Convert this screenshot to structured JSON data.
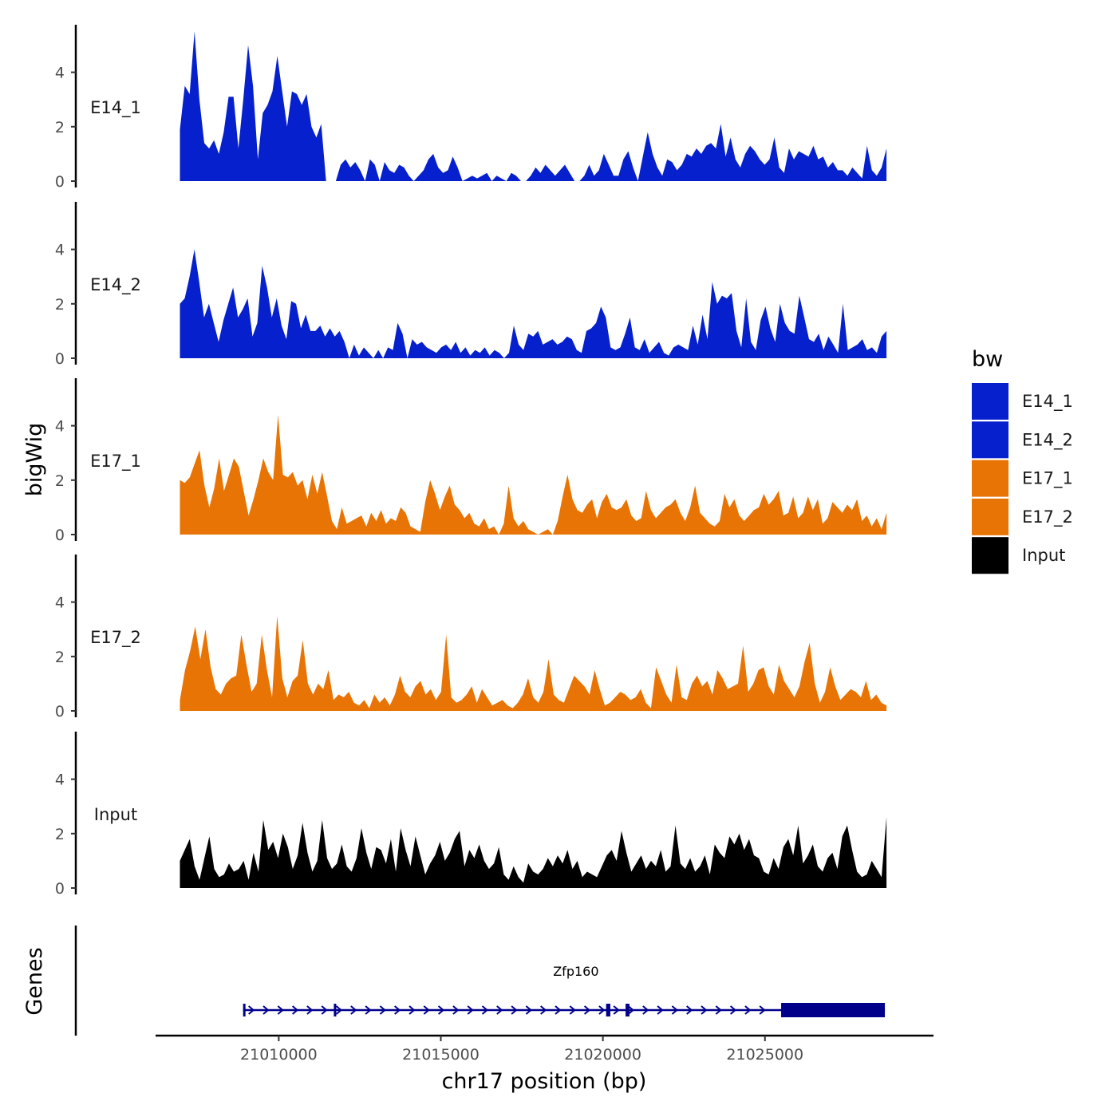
{
  "chart_data": {
    "type": "area",
    "title": "",
    "xlabel": "chr17 position (bp)",
    "ylabel": "bigWig",
    "genes_panel_label": "Genes",
    "xlim": [
      21006200,
      21030200
    ],
    "x_range_data": [
      21006950,
      21028750
    ],
    "x_ticks": [
      21010000,
      21015000,
      21020000,
      21025000
    ],
    "x_tick_labels": [
      "21010000",
      "21015000",
      "21020000",
      "21025000"
    ],
    "ylim": [
      0,
      5.75
    ],
    "y_ticks": [
      0,
      2,
      4
    ],
    "y_tick_labels": [
      "0",
      "2",
      "4"
    ],
    "legend": {
      "title": "bw",
      "position": "right",
      "entries": [
        {
          "label": "E14_1",
          "color": "#0520CC"
        },
        {
          "label": "E14_2",
          "color": "#0520CC"
        },
        {
          "label": "E17_1",
          "color": "#E87405"
        },
        {
          "label": "E17_2",
          "color": "#E87405"
        },
        {
          "label": "Input",
          "color": "#000000"
        }
      ]
    },
    "series": [
      {
        "name": "E14_1",
        "color": "#0520CC",
        "x_step_bp": 100,
        "values": [
          1.9,
          3.5,
          3.2,
          5.5,
          3.0,
          1.4,
          1.2,
          1.5,
          1.0,
          1.8,
          3.1,
          3.1,
          1.2,
          3.0,
          5.0,
          3.5,
          0.8,
          2.5,
          2.8,
          3.3,
          4.6,
          3.3,
          2.0,
          3.3,
          3.2,
          2.8,
          3.2,
          2.0,
          1.6,
          2.1,
          0,
          0,
          0,
          0.6,
          0.8,
          0.5,
          0.7,
          0.4,
          0,
          0.8,
          0.6,
          0,
          0.7,
          0.4,
          0.3,
          0.6,
          0.5,
          0.2,
          0,
          0.2,
          0.4,
          0.8,
          1.0,
          0.5,
          0.3,
          0.4,
          0.9,
          0.5,
          0,
          0.1,
          0.2,
          0.1,
          0.2,
          0.3,
          0,
          0.2,
          0.1,
          0,
          0.3,
          0.2,
          0,
          0,
          0.2,
          0.5,
          0.3,
          0.6,
          0.4,
          0.2,
          0.4,
          0.6,
          0.3,
          0,
          0,
          0.2,
          0.6,
          0.2,
          0.4,
          1.0,
          0.6,
          0.2,
          0.2,
          0.8,
          1.1,
          0.5,
          0,
          0.9,
          1.8,
          1.0,
          0.5,
          0.2,
          0.8,
          0.7,
          0.4,
          0.6,
          1.0,
          0.9,
          1.2,
          1.0,
          1.3,
          1.4,
          1.2,
          2.1,
          0.9,
          1.6,
          0.8,
          0.5,
          1.0,
          1.3,
          1.1,
          0.8,
          0.6,
          0.8,
          1.6,
          0.5,
          0.3,
          1.2,
          0.8,
          1.1,
          1.0,
          0.9,
          1.3,
          0.8,
          0.9,
          0.5,
          0.7,
          0.4,
          0.4,
          0.2,
          0.5,
          0.3,
          0.1,
          1.3,
          0.4,
          0.2,
          0.5,
          1.2
        ]
      },
      {
        "name": "E14_2",
        "color": "#0520CC",
        "x_step_bp": 100,
        "values": [
          2.0,
          2.2,
          3.0,
          4.0,
          2.8,
          1.5,
          2.0,
          1.3,
          0.6,
          1.4,
          2.0,
          2.6,
          1.5,
          1.8,
          2.2,
          0.8,
          1.3,
          3.4,
          2.6,
          1.5,
          2.2,
          1.2,
          0.7,
          2.1,
          2.0,
          1.1,
          1.6,
          1.0,
          1.0,
          1.2,
          0.8,
          1.1,
          0.8,
          1.0,
          0.6,
          0,
          0.5,
          0.1,
          0.4,
          0.2,
          0,
          0.3,
          0,
          0.4,
          0.3,
          1.3,
          0.9,
          0,
          0.7,
          0.5,
          0.6,
          0.4,
          0.3,
          0.2,
          0.4,
          0.5,
          0.3,
          0.6,
          0.2,
          0.4,
          0.1,
          0.3,
          0.2,
          0.4,
          0.1,
          0.3,
          0.2,
          0,
          0.2,
          1.2,
          0.5,
          0.3,
          0.9,
          0.8,
          1.0,
          0.5,
          0.6,
          0.7,
          0.5,
          0.6,
          0.8,
          0.7,
          0.3,
          0.2,
          1.0,
          1.1,
          1.3,
          1.9,
          1.5,
          0.4,
          0.3,
          0.4,
          0.9,
          1.5,
          0.4,
          0.3,
          0.7,
          0.2,
          0.4,
          0.6,
          0.2,
          0.1,
          0.4,
          0.5,
          0.4,
          0.3,
          1.2,
          0.5,
          1.6,
          0.7,
          2.8,
          2.0,
          2.3,
          2.2,
          2.4,
          1.0,
          0.4,
          2.2,
          0.6,
          0.3,
          1.4,
          1.9,
          1.1,
          0.6,
          2.0,
          1.3,
          1.0,
          0.9,
          2.3,
          1.5,
          0.7,
          0.6,
          0.9,
          0.3,
          0.8,
          0.5,
          0.2,
          2.0,
          0.3,
          0.4,
          0.5,
          0.7,
          0.3,
          0.4,
          0.2,
          0.8,
          1.0
        ]
      },
      {
        "name": "E17_1",
        "color": "#E87405",
        "x_step_bp": 100,
        "values": [
          2.0,
          1.9,
          2.1,
          2.6,
          3.1,
          1.8,
          1.0,
          1.7,
          2.8,
          1.6,
          2.2,
          2.8,
          2.5,
          1.6,
          0.7,
          1.3,
          2.0,
          2.8,
          2.3,
          2.0,
          4.4,
          2.2,
          2.1,
          2.3,
          1.8,
          2.0,
          1.3,
          2.2,
          1.5,
          2.3,
          1.4,
          0.5,
          0.2,
          1.0,
          0.4,
          0.5,
          0.6,
          0.7,
          0.3,
          0.8,
          0.5,
          0.9,
          0.4,
          0.6,
          0.5,
          1.0,
          0.8,
          0.3,
          0.2,
          0.1,
          1.2,
          2.0,
          1.5,
          0.9,
          1.4,
          1.8,
          1.1,
          0.9,
          0.6,
          0.8,
          0.4,
          0.3,
          0.6,
          0.2,
          0.3,
          0,
          0.4,
          1.8,
          0.6,
          0.3,
          0.5,
          0.2,
          0.1,
          0,
          0.1,
          0.2,
          0,
          0.5,
          1.4,
          2.2,
          1.3,
          0.9,
          0.8,
          1.1,
          1.3,
          0.6,
          1.2,
          1.5,
          1.0,
          0.9,
          1.0,
          1.3,
          0.7,
          0.5,
          0.6,
          1.6,
          0.9,
          0.6,
          0.8,
          1.0,
          1.1,
          1.3,
          0.8,
          0.5,
          1.0,
          1.8,
          0.8,
          0.6,
          0.4,
          0.3,
          0.5,
          1.5,
          1.0,
          1.3,
          0.7,
          0.5,
          0.7,
          0.9,
          1.0,
          1.5,
          1.1,
          1.3,
          1.6,
          0.7,
          0.8,
          1.4,
          0.6,
          0.8,
          1.4,
          0.9,
          1.3,
          0.4,
          0.6,
          1.2,
          1.0,
          0.8,
          1.1,
          0.9,
          1.3,
          0.5,
          0.7,
          0.3,
          0.6,
          0.2,
          0.8
        ]
      },
      {
        "name": "E17_2",
        "color": "#E87405",
        "x_step_bp": 100,
        "values": [
          0.4,
          1.5,
          2.2,
          3.1,
          1.9,
          3.0,
          1.6,
          0.8,
          0.6,
          1.0,
          1.2,
          1.3,
          2.8,
          1.7,
          0.7,
          1.0,
          2.8,
          1.5,
          0.5,
          3.5,
          1.2,
          0.5,
          1.1,
          1.3,
          2.6,
          1.0,
          0.6,
          1.0,
          0.8,
          1.5,
          0.4,
          0.6,
          0.5,
          0.7,
          0.3,
          0.2,
          0.4,
          0.1,
          0.6,
          0.3,
          0.5,
          0.2,
          0.6,
          1.3,
          0.7,
          0.5,
          0.9,
          1.1,
          0.6,
          0.8,
          0.4,
          0.7,
          2.8,
          0.5,
          0.3,
          0.4,
          0.6,
          0.9,
          0.3,
          0.8,
          0.5,
          0.2,
          0.3,
          0.4,
          0.2,
          0.1,
          0.3,
          0.6,
          1.2,
          0.5,
          0.3,
          0.7,
          1.9,
          0.6,
          0.4,
          0.3,
          0.8,
          1.3,
          1.1,
          0.9,
          0.6,
          1.5,
          0.8,
          0.2,
          0.3,
          0.5,
          0.7,
          0.6,
          0.4,
          0.5,
          0.8,
          0.3,
          0.1,
          1.6,
          1.1,
          0.6,
          0.3,
          1.7,
          0.5,
          0.4,
          1.0,
          1.3,
          0.9,
          1.1,
          0.6,
          1.5,
          1.2,
          0.8,
          0.9,
          1.0,
          2.4,
          0.7,
          1.0,
          1.5,
          1.6,
          0.9,
          0.6,
          1.7,
          1.1,
          0.8,
          0.5,
          0.9,
          1.8,
          2.5,
          1.0,
          0.3,
          0.7,
          1.6,
          0.9,
          0.4,
          0.6,
          0.8,
          0.7,
          0.5,
          1.1,
          0.4,
          0.6,
          0.3,
          0.2
        ]
      },
      {
        "name": "Input",
        "color": "#000000",
        "x_step_bp": 100,
        "values": [
          1.0,
          1.4,
          1.8,
          0.8,
          0.3,
          1.1,
          1.9,
          0.7,
          0.4,
          0.5,
          0.9,
          0.6,
          0.7,
          1.0,
          0.3,
          1.3,
          0.6,
          2.5,
          1.4,
          1.7,
          1.1,
          2.0,
          1.5,
          0.7,
          1.2,
          2.4,
          1.3,
          0.6,
          1.0,
          2.5,
          1.1,
          0.7,
          0.9,
          1.6,
          0.8,
          0.6,
          1.1,
          2.2,
          1.3,
          0.7,
          1.5,
          1.4,
          0.9,
          1.8,
          0.6,
          2.2,
          1.4,
          0.8,
          1.9,
          1.2,
          0.5,
          0.9,
          1.2,
          1.7,
          1.0,
          1.3,
          1.8,
          2.1,
          0.8,
          1.4,
          1.1,
          1.6,
          1.0,
          0.7,
          0.9,
          1.5,
          0.5,
          0.3,
          0.8,
          0.4,
          0.2,
          0.9,
          0.6,
          0.5,
          0.7,
          1.1,
          0.8,
          1.2,
          0.9,
          1.4,
          0.7,
          1.0,
          0.4,
          0.6,
          0.5,
          0.4,
          0.8,
          1.2,
          1.4,
          1.0,
          2.1,
          1.3,
          0.6,
          0.9,
          1.2,
          0.7,
          1.0,
          0.8,
          1.4,
          0.6,
          0.8,
          2.3,
          0.9,
          0.7,
          1.1,
          0.6,
          0.8,
          1.2,
          0.5,
          1.6,
          1.3,
          1.1,
          1.9,
          1.6,
          2.0,
          1.4,
          1.8,
          1.2,
          1.1,
          0.6,
          0.5,
          1.1,
          0.7,
          1.5,
          1.8,
          1.2,
          2.3,
          0.9,
          1.2,
          1.6,
          0.8,
          0.6,
          1.1,
          1.3,
          0.7,
          1.9,
          2.3,
          1.4,
          0.6,
          0.4,
          0.5,
          1.0,
          0.7,
          0.4,
          2.6
        ]
      }
    ],
    "genes": [
      {
        "name": "Zfp160",
        "start": 21008900,
        "end": 21028700,
        "strand": "+",
        "color": "#00008B",
        "exons": [
          {
            "start": 21008900,
            "end": 21008960,
            "thick": false
          },
          {
            "start": 21011700,
            "end": 21011760,
            "thick": false
          },
          {
            "start": 21020100,
            "end": 21020230,
            "thick": false
          },
          {
            "start": 21020700,
            "end": 21020820,
            "thick": false
          },
          {
            "start": 21025500,
            "end": 21028700,
            "thick": true
          }
        ]
      }
    ]
  }
}
